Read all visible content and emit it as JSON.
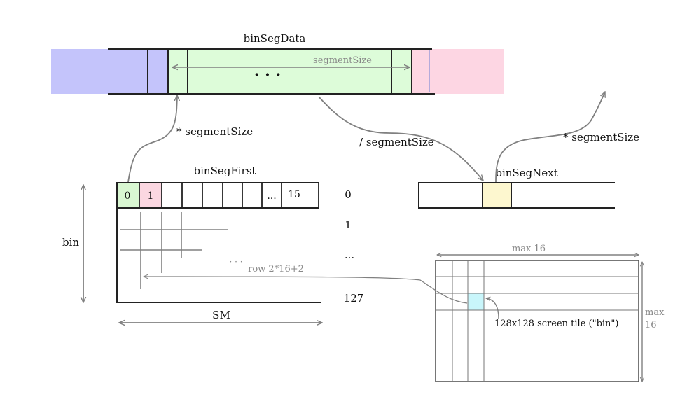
{
  "labels": {
    "binSegData": "binSegData",
    "segmentSize": "segmentSize",
    "ellipsis_big": "· · ·",
    "mul_segmentSize_left": "* segmentSize",
    "div_segmentSize": "/ segmentSize",
    "mul_segmentSize_right": "* segmentSize",
    "binSegFirst": "binSegFirst",
    "binSegNext": "binSegNext",
    "bin": "bin",
    "SM": "SM",
    "row_0": "0",
    "row_1": "1",
    "row_dots": "...",
    "row_127": "127",
    "grid_dots": "· · ·",
    "row_formula": "row 2*16+2",
    "max16_top": "max 16",
    "max16_side_1": "max",
    "max16_side_2": "16",
    "screen_tile": "128x128 screen tile (\"bin\")"
  },
  "binSegFirst_cells": [
    "0",
    "1",
    "",
    "",
    "",
    "",
    "",
    "...",
    "15"
  ],
  "colors": {
    "blue": "#c4c4fb",
    "green": "#ddfcd9",
    "pink": "#fdd6e3",
    "yellow": "#fdf7cf",
    "cyan": "#c9f6fb",
    "green_cell": "#d9f7d2",
    "pink_cell": "#fbd7e1",
    "line": "#222222",
    "arrow": "#808080"
  }
}
